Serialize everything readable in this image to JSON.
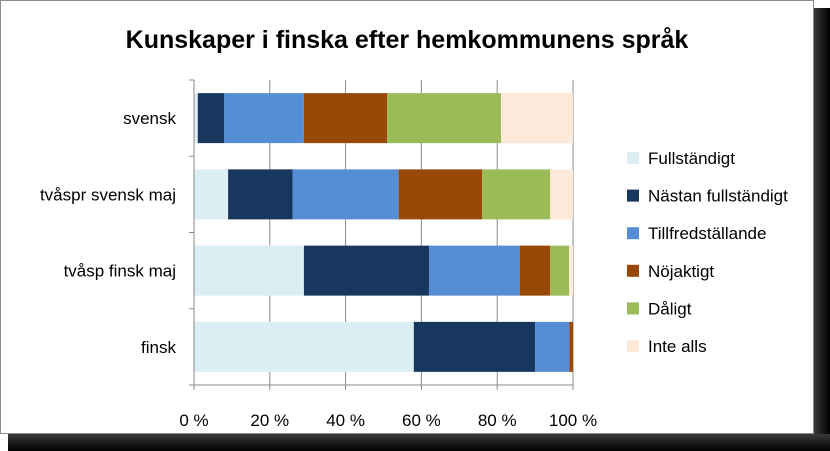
{
  "chart_data": {
    "type": "bar",
    "orientation": "horizontal",
    "stacked": "percent",
    "title": "Kunskaper i finska efter hemkommunens språk",
    "xlabel": "",
    "ylabel": "",
    "xlim": [
      0,
      100
    ],
    "x_ticks": [
      "0 %",
      "20 %",
      "40 %",
      "60 %",
      "80 %",
      "100 %"
    ],
    "grid": true,
    "legend_position": "right",
    "categories": [
      "svensk",
      "tvåspr svensk maj",
      "tvåsp finsk maj",
      "finsk"
    ],
    "series": [
      {
        "name": "Fullständigt",
        "color": "#dbeef3",
        "values": [
          1,
          9,
          29,
          58
        ]
      },
      {
        "name": "Nästan fullständigt",
        "color": "#17375e",
        "values": [
          7,
          17,
          33,
          32
        ]
      },
      {
        "name": "Tillfredställande",
        "color": "#558ed5",
        "values": [
          21,
          28,
          24,
          9
        ]
      },
      {
        "name": "Nöjaktigt",
        "color": "#984807",
        "values": [
          22,
          22,
          8,
          1
        ]
      },
      {
        "name": "Dåligt",
        "color": "#9bbb59",
        "values": [
          30,
          18,
          5,
          0
        ]
      },
      {
        "name": "Inte alls",
        "color": "#fde9d9",
        "values": [
          19,
          6,
          1,
          0
        ]
      }
    ]
  }
}
